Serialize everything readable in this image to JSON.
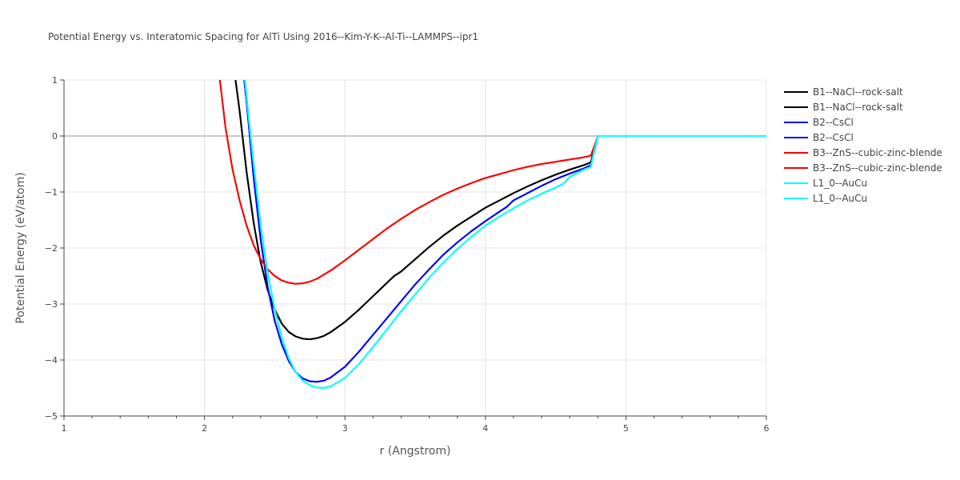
{
  "chart_data": {
    "type": "line",
    "title": "Potential Energy vs. Interatomic Spacing for AlTi Using 2016--Kim-Y-K--Al-Ti--LAMMPS--ipr1",
    "xlabel": "r (Angstrom)",
    "ylabel": "Potential Energy (eV/atom)",
    "xlim": [
      1,
      6
    ],
    "ylim": [
      -5,
      1
    ],
    "xticks": [
      1,
      2,
      3,
      4,
      5,
      6
    ],
    "yticks": [
      1,
      0,
      -1,
      -2,
      -3,
      -4,
      -5
    ],
    "xtick_labels": [
      "1",
      "2",
      "3",
      "4",
      "5",
      "6"
    ],
    "ytick_labels": [
      "1",
      "0",
      "−1",
      "−2",
      "−3",
      "−4",
      "−5"
    ],
    "grid": true,
    "legend_position": "top-right",
    "series": [
      {
        "name": "B1--NaCl--rock-salt",
        "color": "#000000",
        "x": [
          2.2,
          2.25,
          2.3,
          2.35,
          2.4,
          2.45,
          2.5,
          2.55,
          2.6,
          2.65,
          2.7,
          2.75,
          2.8,
          2.85,
          2.9,
          3.0,
          3.1,
          3.2,
          3.3,
          3.35,
          3.4,
          3.5,
          3.6,
          3.7,
          3.8,
          3.9,
          4.0,
          4.1,
          4.2,
          4.3,
          4.4,
          4.5,
          4.6,
          4.7,
          4.75,
          4.78,
          4.8,
          5.0,
          6.0
        ],
        "y": [
          1.4,
          0.45,
          -0.65,
          -1.55,
          -2.25,
          -2.75,
          -3.1,
          -3.35,
          -3.5,
          -3.58,
          -3.62,
          -3.63,
          -3.61,
          -3.57,
          -3.5,
          -3.32,
          -3.1,
          -2.86,
          -2.62,
          -2.5,
          -2.42,
          -2.2,
          -1.98,
          -1.78,
          -1.6,
          -1.44,
          -1.28,
          -1.15,
          -1.02,
          -0.9,
          -0.79,
          -0.69,
          -0.6,
          -0.52,
          -0.47,
          -0.2,
          0.0,
          0.0,
          0.0
        ]
      },
      {
        "name": "B1--NaCl--rock-salt",
        "color": "#000000",
        "x": [
          2.2,
          2.25,
          2.3,
          2.35,
          2.4,
          2.45,
          2.5,
          2.55,
          2.6,
          2.65,
          2.7,
          2.75,
          2.8,
          2.85,
          2.9,
          3.0,
          3.1,
          3.2,
          3.3,
          3.35,
          3.4,
          3.5,
          3.6,
          3.7,
          3.8,
          3.9,
          4.0,
          4.1,
          4.2,
          4.3,
          4.4,
          4.5,
          4.6,
          4.7,
          4.75,
          4.78,
          4.8,
          5.0,
          6.0
        ],
        "y": [
          1.4,
          0.45,
          -0.65,
          -1.55,
          -2.25,
          -2.75,
          -3.1,
          -3.35,
          -3.5,
          -3.58,
          -3.62,
          -3.63,
          -3.61,
          -3.57,
          -3.5,
          -3.32,
          -3.1,
          -2.86,
          -2.62,
          -2.5,
          -2.42,
          -2.2,
          -1.98,
          -1.78,
          -1.6,
          -1.44,
          -1.28,
          -1.15,
          -1.02,
          -0.9,
          -0.79,
          -0.69,
          -0.6,
          -0.52,
          -0.47,
          -0.2,
          0.0,
          0.0,
          0.0
        ]
      },
      {
        "name": "B2--CsCl",
        "color": "#0000ff",
        "x": [
          2.27,
          2.3,
          2.35,
          2.4,
          2.45,
          2.5,
          2.55,
          2.6,
          2.65,
          2.7,
          2.75,
          2.8,
          2.85,
          2.9,
          3.0,
          3.1,
          3.2,
          3.3,
          3.4,
          3.5,
          3.6,
          3.7,
          3.8,
          3.9,
          4.0,
          4.1,
          4.15,
          4.2,
          4.3,
          4.4,
          4.5,
          4.6,
          4.7,
          4.75,
          4.78,
          4.8,
          5.0,
          6.0
        ],
        "y": [
          1.3,
          0.6,
          -0.75,
          -1.85,
          -2.7,
          -3.3,
          -3.72,
          -4.02,
          -4.22,
          -4.33,
          -4.38,
          -4.39,
          -4.37,
          -4.31,
          -4.12,
          -3.85,
          -3.55,
          -3.25,
          -2.95,
          -2.65,
          -2.38,
          -2.12,
          -1.9,
          -1.7,
          -1.52,
          -1.35,
          -1.27,
          -1.15,
          -1.02,
          -0.89,
          -0.77,
          -0.67,
          -0.58,
          -0.52,
          -0.22,
          0.0,
          0.0,
          0.0
        ]
      },
      {
        "name": "B2--CsCl",
        "color": "#0000ff",
        "x": [
          2.27,
          2.3,
          2.35,
          2.4,
          2.45,
          2.5,
          2.55,
          2.6,
          2.65,
          2.7,
          2.75,
          2.8,
          2.85,
          2.9,
          3.0,
          3.1,
          3.2,
          3.3,
          3.4,
          3.5,
          3.6,
          3.7,
          3.8,
          3.9,
          4.0,
          4.1,
          4.15,
          4.2,
          4.3,
          4.4,
          4.5,
          4.6,
          4.7,
          4.75,
          4.78,
          4.8,
          5.0,
          6.0
        ],
        "y": [
          1.3,
          0.6,
          -0.75,
          -1.85,
          -2.7,
          -3.3,
          -3.72,
          -4.02,
          -4.22,
          -4.33,
          -4.38,
          -4.39,
          -4.37,
          -4.31,
          -4.12,
          -3.85,
          -3.55,
          -3.25,
          -2.95,
          -2.65,
          -2.38,
          -2.12,
          -1.9,
          -1.7,
          -1.52,
          -1.35,
          -1.27,
          -1.15,
          -1.02,
          -0.89,
          -0.77,
          -0.67,
          -0.58,
          -0.52,
          -0.22,
          0.0,
          0.0,
          0.0
        ]
      },
      {
        "name": "B3--ZnS--cubic-zinc-blende",
        "color": "#ff0000",
        "x": [
          2.1,
          2.15,
          2.2,
          2.25,
          2.3,
          2.35,
          2.4,
          2.45,
          2.5,
          2.55,
          2.6,
          2.65,
          2.7,
          2.75,
          2.8,
          2.9,
          3.0,
          3.1,
          3.2,
          3.3,
          3.4,
          3.5,
          3.6,
          3.7,
          3.8,
          3.9,
          4.0,
          4.1,
          4.2,
          4.3,
          4.4,
          4.5,
          4.6,
          4.7,
          4.75,
          4.78,
          4.8,
          5.0,
          6.0
        ],
        "y": [
          1.2,
          0.15,
          -0.6,
          -1.15,
          -1.6,
          -1.95,
          -2.2,
          -2.38,
          -2.5,
          -2.58,
          -2.62,
          -2.64,
          -2.63,
          -2.6,
          -2.55,
          -2.4,
          -2.22,
          -2.03,
          -1.84,
          -1.65,
          -1.48,
          -1.32,
          -1.18,
          -1.05,
          -0.94,
          -0.84,
          -0.75,
          -0.68,
          -0.61,
          -0.55,
          -0.5,
          -0.46,
          -0.42,
          -0.38,
          -0.35,
          -0.15,
          0.0,
          0.0,
          0.0
        ]
      },
      {
        "name": "B3--ZnS--cubic-zinc-blende",
        "color": "#ff0000",
        "x": [
          2.1,
          2.15,
          2.2,
          2.25,
          2.3,
          2.35,
          2.4,
          2.45,
          2.5,
          2.55,
          2.6,
          2.65,
          2.7,
          2.75,
          2.8,
          2.9,
          3.0,
          3.1,
          3.2,
          3.3,
          3.4,
          3.5,
          3.6,
          3.7,
          3.8,
          3.9,
          4.0,
          4.1,
          4.2,
          4.3,
          4.4,
          4.5,
          4.6,
          4.7,
          4.75,
          4.78,
          4.8,
          5.0,
          6.0
        ],
        "y": [
          1.2,
          0.15,
          -0.6,
          -1.15,
          -1.6,
          -1.95,
          -2.2,
          -2.38,
          -2.5,
          -2.58,
          -2.62,
          -2.64,
          -2.63,
          -2.6,
          -2.55,
          -2.4,
          -2.22,
          -2.03,
          -1.84,
          -1.65,
          -1.48,
          -1.32,
          -1.18,
          -1.05,
          -0.94,
          -0.84,
          -0.75,
          -0.68,
          -0.61,
          -0.55,
          -0.5,
          -0.46,
          -0.42,
          -0.38,
          -0.35,
          -0.15,
          0.0,
          0.0,
          0.0
        ]
      },
      {
        "name": "L1_0--AuCu",
        "color": "#00ffff",
        "x": [
          2.28,
          2.32,
          2.35,
          2.4,
          2.45,
          2.5,
          2.55,
          2.6,
          2.65,
          2.7,
          2.75,
          2.8,
          2.85,
          2.9,
          3.0,
          3.1,
          3.2,
          3.3,
          3.4,
          3.5,
          3.6,
          3.7,
          3.8,
          3.9,
          4.0,
          4.1,
          4.2,
          4.3,
          4.4,
          4.5,
          4.55,
          4.6,
          4.7,
          4.75,
          4.78,
          4.8,
          5.0,
          6.0
        ],
        "y": [
          1.2,
          0.2,
          -0.5,
          -1.6,
          -2.45,
          -3.1,
          -3.6,
          -3.97,
          -4.22,
          -4.37,
          -4.45,
          -4.49,
          -4.5,
          -4.47,
          -4.32,
          -4.07,
          -3.77,
          -3.45,
          -3.13,
          -2.83,
          -2.53,
          -2.26,
          -2.02,
          -1.8,
          -1.6,
          -1.44,
          -1.29,
          -1.15,
          -1.03,
          -0.92,
          -0.86,
          -0.73,
          -0.6,
          -0.55,
          -0.2,
          0.0,
          0.0,
          0.0
        ]
      },
      {
        "name": "L1_0--AuCu",
        "color": "#00ffff",
        "x": [
          2.28,
          2.32,
          2.35,
          2.4,
          2.45,
          2.5,
          2.55,
          2.6,
          2.65,
          2.7,
          2.75,
          2.8,
          2.85,
          2.9,
          3.0,
          3.1,
          3.2,
          3.3,
          3.4,
          3.5,
          3.6,
          3.7,
          3.8,
          3.9,
          4.0,
          4.1,
          4.2,
          4.3,
          4.4,
          4.5,
          4.55,
          4.6,
          4.7,
          4.75,
          4.78,
          4.8,
          5.0,
          6.0
        ],
        "y": [
          1.2,
          0.2,
          -0.5,
          -1.6,
          -2.45,
          -3.1,
          -3.6,
          -3.97,
          -4.22,
          -4.37,
          -4.45,
          -4.49,
          -4.5,
          -4.47,
          -4.32,
          -4.07,
          -3.77,
          -3.45,
          -3.13,
          -2.83,
          -2.53,
          -2.26,
          -2.02,
          -1.8,
          -1.6,
          -1.44,
          -1.29,
          -1.15,
          -1.03,
          -0.92,
          -0.86,
          -0.73,
          -0.6,
          -0.55,
          -0.2,
          0.0,
          0.0,
          0.0
        ]
      }
    ]
  }
}
